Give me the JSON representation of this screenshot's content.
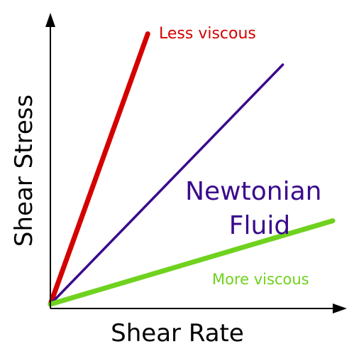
{
  "chart_data": {
    "type": "line",
    "title": "",
    "xlabel": "Shear Rate",
    "ylabel": "Shear Stress",
    "axis_style": "arrows",
    "ticks": false,
    "grid": false,
    "legend": "none",
    "xlim": [
      0,
      10
    ],
    "ylim": [
      0,
      10
    ],
    "series": [
      {
        "key": "less",
        "name": "Less viscous",
        "color": "#d40000",
        "x": [
          0,
          3.45
        ],
        "y": [
          0,
          9.3
        ]
      },
      {
        "key": "newtonian",
        "label_lines": [
          "Newtonian",
          "Fluid"
        ],
        "color": "#3a0a8c",
        "x": [
          0,
          8.23
        ],
        "y": [
          0,
          8.24
        ]
      },
      {
        "key": "more",
        "name": "More viscous",
        "color": "#6fd21e",
        "x": [
          0,
          10
        ],
        "y": [
          0,
          2.87
        ]
      }
    ]
  }
}
